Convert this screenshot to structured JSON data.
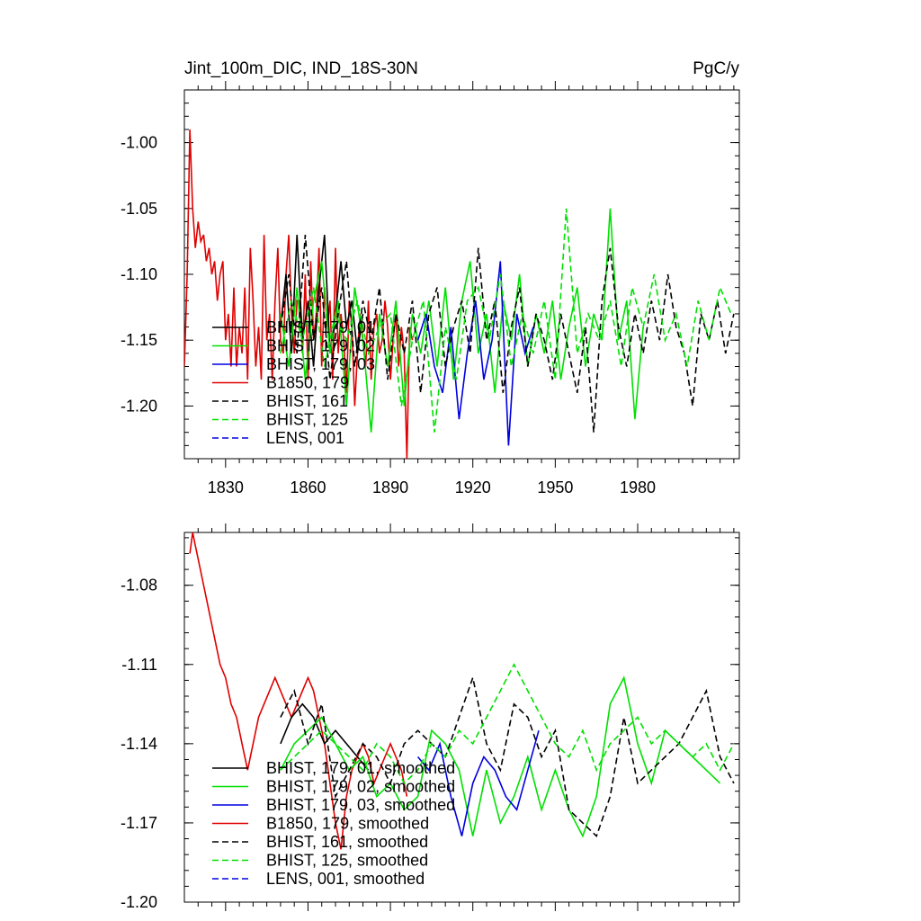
{
  "chart_data": [
    {
      "type": "line",
      "title": "Jint_100m_DIC, IND_18S-30N",
      "units": "PgC/y",
      "xlim": [
        1815,
        2017
      ],
      "ylim": [
        -1.24,
        -0.96
      ],
      "xticks": [
        1830,
        1860,
        1890,
        1920,
        1950,
        1980
      ],
      "xtick_labels": [
        "1830",
        "1860",
        "1890",
        "1920",
        "1950",
        "1980"
      ],
      "yticks": [
        -1.2,
        -1.15,
        -1.1,
        -1.05,
        -1.0
      ],
      "ytick_labels": [
        "-1.20",
        "-1.15",
        "-1.10",
        "-1.05",
        "-1.00"
      ],
      "legend": [
        "BHIST, 179, 01",
        "BHIST, 179, 02",
        "BHIST, 179, 03",
        "B1850, 179",
        "BHIST, 161",
        "BHIST, 125",
        "LENS, 001"
      ],
      "series": [
        {
          "name": "B1850, 179",
          "color": "#e00000",
          "dash": false,
          "x": [
            1815,
            1816,
            1817,
            1818,
            1819,
            1820,
            1821,
            1822,
            1823,
            1824,
            1825,
            1826,
            1827,
            1828,
            1829,
            1830,
            1831,
            1832,
            1833,
            1834,
            1835,
            1836,
            1837,
            1838,
            1839,
            1840,
            1841,
            1842,
            1843,
            1844,
            1845,
            1846,
            1847,
            1848,
            1849,
            1850,
            1851,
            1852,
            1853,
            1854,
            1855,
            1856,
            1857,
            1858,
            1859,
            1860,
            1861,
            1862,
            1863,
            1864,
            1865,
            1866,
            1867,
            1868,
            1869,
            1870,
            1871,
            1872,
            1873,
            1874,
            1875,
            1876,
            1877,
            1878,
            1879,
            1880,
            1881,
            1882,
            1883,
            1884,
            1885,
            1886,
            1887,
            1888,
            1889,
            1890,
            1891,
            1892,
            1893,
            1894,
            1895,
            1896,
            1897,
            1898
          ],
          "values": [
            -1.17,
            -1.1,
            -0.99,
            -1.05,
            -1.08,
            -1.06,
            -1.075,
            -1.07,
            -1.09,
            -1.08,
            -1.1,
            -1.09,
            -1.12,
            -1.1,
            -1.09,
            -1.15,
            -1.13,
            -1.17,
            -1.11,
            -1.17,
            -1.14,
            -1.16,
            -1.11,
            -1.18,
            -1.08,
            -1.12,
            -1.17,
            -1.14,
            -1.18,
            -1.07,
            -1.15,
            -1.13,
            -1.18,
            -1.12,
            -1.08,
            -1.15,
            -1.16,
            -1.1,
            -1.07,
            -1.13,
            -1.16,
            -1.12,
            -1.12,
            -1.16,
            -1.1,
            -1.18,
            -1.09,
            -1.15,
            -1.13,
            -1.08,
            -1.17,
            -1.11,
            -1.14,
            -1.12,
            -1.18,
            -1.08,
            -1.16,
            -1.13,
            -1.15,
            -1.19,
            -1.12,
            -1.14,
            -1.2,
            -1.16,
            -1.13,
            -1.15,
            -1.17,
            -1.12,
            -1.18,
            -1.14,
            -1.13,
            -1.16,
            -1.15,
            -1.12,
            -1.14,
            -1.18,
            -1.15,
            -1.13,
            -1.17,
            -1.14,
            -1.16,
            -1.24,
            -1.14,
            -1.15
          ]
        },
        {
          "name": "BHIST, 179, 01",
          "color": "#000000",
          "dash": false,
          "x": [
            1850,
            1852,
            1854,
            1856,
            1858,
            1860,
            1862,
            1864,
            1866,
            1868,
            1870,
            1872,
            1874,
            1876,
            1878,
            1880
          ],
          "values": [
            -1.14,
            -1.1,
            -1.16,
            -1.07,
            -1.15,
            -1.12,
            -1.17,
            -1.11,
            -1.07,
            -1.16,
            -1.13,
            -1.09,
            -1.14,
            -1.12,
            -1.16,
            -1.13
          ]
        },
        {
          "name": "BHIST, 179, 02",
          "color": "#00e000",
          "dash": false,
          "x": [
            1850,
            1853,
            1856,
            1859,
            1862,
            1865,
            1868,
            1871,
            1874,
            1877,
            1880,
            1883,
            1886,
            1889,
            1892,
            1895,
            1898,
            1901,
            1904,
            1907,
            1910,
            1913,
            1916,
            1919,
            1922,
            1925,
            1928,
            1931,
            1934,
            1937,
            1940,
            1943,
            1946,
            1949,
            1952,
            1955,
            1958,
            1961,
            1964,
            1967,
            1970,
            1973,
            1976,
            1979,
            1982
          ],
          "values": [
            -1.13,
            -1.17,
            -1.11,
            -1.18,
            -1.12,
            -1.09,
            -1.16,
            -1.12,
            -1.2,
            -1.11,
            -1.15,
            -1.22,
            -1.13,
            -1.17,
            -1.12,
            -1.2,
            -1.13,
            -1.16,
            -1.12,
            -1.17,
            -1.11,
            -1.18,
            -1.12,
            -1.09,
            -1.16,
            -1.13,
            -1.19,
            -1.12,
            -1.15,
            -1.1,
            -1.17,
            -1.13,
            -1.16,
            -1.12,
            -1.18,
            -1.14,
            -1.11,
            -1.17,
            -1.13,
            -1.15,
            -1.05,
            -1.15,
            -1.12,
            -1.21,
            -1.14
          ]
        },
        {
          "name": "BHIST, 179, 03",
          "color": "#0000e0",
          "dash": false,
          "x": [
            1900,
            1903,
            1906,
            1909,
            1912,
            1915,
            1918,
            1921,
            1924,
            1927,
            1930,
            1933,
            1936,
            1939,
            1942
          ],
          "values": [
            -1.15,
            -1.13,
            -1.17,
            -1.19,
            -1.14,
            -1.21,
            -1.16,
            -1.12,
            -1.18,
            -1.15,
            -1.09,
            -1.23,
            -1.13,
            -1.16,
            -1.14
          ]
        },
        {
          "name": "BHIST, 161",
          "color": "#000000",
          "dash": true,
          "x": [
            1850,
            1853,
            1856,
            1859,
            1862,
            1865,
            1868,
            1871,
            1874,
            1877,
            1880,
            1883,
            1886,
            1889,
            1892,
            1895,
            1898,
            1901,
            1904,
            1907,
            1910,
            1913,
            1916,
            1919,
            1922,
            1925,
            1928,
            1931,
            1934,
            1937,
            1940,
            1943,
            1946,
            1949,
            1952,
            1955,
            1958,
            1961,
            1964,
            1967,
            1970,
            1973,
            1976,
            1979,
            1982,
            1985,
            1988,
            1991,
            1994,
            1997,
            2000,
            2003,
            2006,
            2009,
            2012,
            2015
          ],
          "values": [
            -1.14,
            -1.1,
            -1.16,
            -1.07,
            -1.15,
            -1.11,
            -1.18,
            -1.13,
            -1.09,
            -1.17,
            -1.12,
            -1.15,
            -1.11,
            -1.18,
            -1.13,
            -1.16,
            -1.12,
            -1.19,
            -1.13,
            -1.11,
            -1.17,
            -1.14,
            -1.12,
            -1.16,
            -1.08,
            -1.15,
            -1.12,
            -1.19,
            -1.14,
            -1.11,
            -1.17,
            -1.13,
            -1.15,
            -1.18,
            -1.13,
            -1.16,
            -1.19,
            -1.14,
            -1.22,
            -1.12,
            -1.08,
            -1.14,
            -1.17,
            -1.13,
            -1.16,
            -1.12,
            -1.15,
            -1.1,
            -1.14,
            -1.16,
            -1.2,
            -1.13,
            -1.15,
            -1.12,
            -1.16,
            -1.13
          ]
        },
        {
          "name": "BHIST, 125",
          "color": "#00e000",
          "dash": true,
          "x": [
            1850,
            1854,
            1858,
            1862,
            1866,
            1870,
            1874,
            1878,
            1882,
            1886,
            1890,
            1894,
            1898,
            1902,
            1906,
            1910,
            1914,
            1918,
            1922,
            1926,
            1930,
            1934,
            1938,
            1942,
            1946,
            1950,
            1954,
            1958,
            1962,
            1966,
            1970,
            1974,
            1978,
            1982,
            1986,
            1990,
            1994,
            1998,
            2002,
            2006,
            2010,
            2014
          ],
          "values": [
            -1.16,
            -1.12,
            -1.15,
            -1.11,
            -1.17,
            -1.13,
            -1.15,
            -1.12,
            -1.16,
            -1.14,
            -1.13,
            -1.2,
            -1.15,
            -1.12,
            -1.22,
            -1.14,
            -1.18,
            -1.12,
            -1.11,
            -1.15,
            -1.1,
            -1.17,
            -1.13,
            -1.16,
            -1.12,
            -1.18,
            -1.05,
            -1.16,
            -1.13,
            -1.15,
            -1.12,
            -1.17,
            -1.11,
            -1.14,
            -1.1,
            -1.15,
            -1.13,
            -1.17,
            -1.12,
            -1.15,
            -1.11,
            -1.13
          ]
        }
      ]
    },
    {
      "type": "line",
      "xlim": [
        1815,
        2017
      ],
      "ylim": [
        -1.2,
        -1.06
      ],
      "xticks": [
        1830,
        1860,
        1890,
        1920,
        1950,
        1980
      ],
      "yticks": [
        -1.2,
        -1.17,
        -1.14,
        -1.11,
        -1.08
      ],
      "ytick_labels": [
        "-1.20",
        "-1.17",
        "-1.14",
        "-1.11",
        "-1.08"
      ],
      "legend": [
        "BHIST, 179, 01, smoothed",
        "BHIST, 179, 02, smoothed",
        "BHIST, 179, 03, smoothed",
        "B1850, 179, smoothed",
        "BHIST, 161, smoothed",
        "BHIST, 125, smoothed",
        "LENS, 001, smoothed"
      ],
      "series": [
        {
          "name": "B1850, 179, smoothed",
          "color": "#e00000",
          "dash": false,
          "x": [
            1817,
            1818,
            1819,
            1820,
            1822,
            1824,
            1826,
            1828,
            1830,
            1832,
            1834,
            1836,
            1838,
            1840,
            1842,
            1844,
            1846,
            1848,
            1850,
            1852,
            1854,
            1856,
            1858,
            1860,
            1862,
            1864,
            1866,
            1868,
            1870,
            1872,
            1874,
            1876,
            1878,
            1880,
            1882,
            1884,
            1886,
            1888,
            1890,
            1892,
            1894,
            1896
          ],
          "values": [
            -1.068,
            -1.06,
            -1.065,
            -1.07,
            -1.08,
            -1.09,
            -1.1,
            -1.11,
            -1.115,
            -1.125,
            -1.13,
            -1.14,
            -1.15,
            -1.14,
            -1.13,
            -1.125,
            -1.12,
            -1.115,
            -1.12,
            -1.125,
            -1.13,
            -1.125,
            -1.12,
            -1.115,
            -1.12,
            -1.13,
            -1.14,
            -1.155,
            -1.17,
            -1.18,
            -1.16,
            -1.15,
            -1.145,
            -1.14,
            -1.145,
            -1.155,
            -1.15,
            -1.145,
            -1.14,
            -1.145,
            -1.15,
            -1.16
          ]
        },
        {
          "name": "BHIST, 179, 01, smoothed",
          "color": "#000000",
          "dash": false,
          "x": [
            1850,
            1854,
            1858,
            1862,
            1866,
            1870,
            1874,
            1878,
            1882
          ],
          "values": [
            -1.14,
            -1.13,
            -1.125,
            -1.13,
            -1.14,
            -1.135,
            -1.14,
            -1.145,
            -1.15
          ]
        },
        {
          "name": "BHIST, 179, 02, smoothed",
          "color": "#00e000",
          "dash": false,
          "x": [
            1850,
            1855,
            1860,
            1865,
            1870,
            1875,
            1880,
            1885,
            1890,
            1895,
            1900,
            1905,
            1910,
            1915,
            1920,
            1925,
            1930,
            1935,
            1940,
            1945,
            1950,
            1955,
            1960,
            1965,
            1970,
            1975,
            1980,
            1985,
            1990,
            1995,
            2000,
            2005,
            2010
          ],
          "values": [
            -1.15,
            -1.14,
            -1.135,
            -1.13,
            -1.14,
            -1.15,
            -1.145,
            -1.16,
            -1.155,
            -1.165,
            -1.16,
            -1.135,
            -1.14,
            -1.15,
            -1.175,
            -1.15,
            -1.17,
            -1.16,
            -1.145,
            -1.165,
            -1.15,
            -1.165,
            -1.175,
            -1.16,
            -1.125,
            -1.115,
            -1.14,
            -1.155,
            -1.135,
            -1.14,
            -1.145,
            -1.15,
            -1.155
          ]
        },
        {
          "name": "BHIST, 179, 03, smoothed",
          "color": "#0000e0",
          "dash": false,
          "x": [
            1900,
            1904,
            1908,
            1912,
            1916,
            1920,
            1924,
            1928,
            1932,
            1936,
            1940,
            1944
          ],
          "values": [
            -1.145,
            -1.15,
            -1.14,
            -1.16,
            -1.175,
            -1.155,
            -1.145,
            -1.15,
            -1.16,
            -1.165,
            -1.15,
            -1.135
          ]
        },
        {
          "name": "BHIST, 161, smoothed",
          "color": "#000000",
          "dash": true,
          "x": [
            1850,
            1855,
            1860,
            1865,
            1870,
            1875,
            1880,
            1885,
            1890,
            1895,
            1900,
            1905,
            1910,
            1915,
            1920,
            1925,
            1930,
            1935,
            1940,
            1945,
            1950,
            1955,
            1960,
            1965,
            1970,
            1975,
            1980,
            1985,
            1990,
            1995,
            2000,
            2005,
            2010,
            2015
          ],
          "values": [
            -1.13,
            -1.12,
            -1.14,
            -1.125,
            -1.16,
            -1.15,
            -1.14,
            -1.145,
            -1.155,
            -1.14,
            -1.135,
            -1.14,
            -1.145,
            -1.13,
            -1.115,
            -1.14,
            -1.15,
            -1.125,
            -1.13,
            -1.145,
            -1.135,
            -1.165,
            -1.17,
            -1.175,
            -1.16,
            -1.13,
            -1.155,
            -1.15,
            -1.145,
            -1.14,
            -1.13,
            -1.12,
            -1.145,
            -1.155
          ]
        },
        {
          "name": "BHIST, 125, smoothed",
          "color": "#00e000",
          "dash": true,
          "x": [
            1850,
            1855,
            1860,
            1865,
            1870,
            1875,
            1880,
            1885,
            1890,
            1895,
            1900,
            1905,
            1910,
            1915,
            1920,
            1925,
            1930,
            1935,
            1940,
            1945,
            1950,
            1955,
            1960,
            1965,
            1970,
            1975,
            1980,
            1985,
            1990,
            1995,
            2000,
            2005,
            2010,
            2015
          ],
          "values": [
            -1.15,
            -1.145,
            -1.14,
            -1.135,
            -1.14,
            -1.145,
            -1.15,
            -1.14,
            -1.145,
            -1.155,
            -1.15,
            -1.14,
            -1.145,
            -1.135,
            -1.14,
            -1.13,
            -1.12,
            -1.11,
            -1.12,
            -1.13,
            -1.14,
            -1.145,
            -1.135,
            -1.15,
            -1.14,
            -1.135,
            -1.13,
            -1.14,
            -1.135,
            -1.14,
            -1.145,
            -1.14,
            -1.15,
            -1.14
          ]
        }
      ]
    }
  ]
}
